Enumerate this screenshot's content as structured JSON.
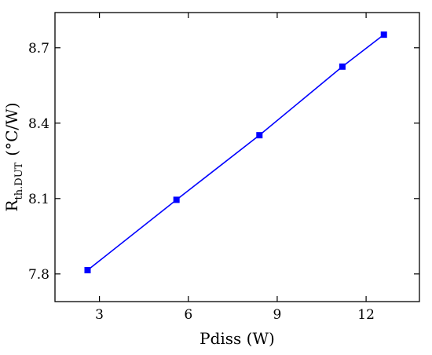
{
  "chart_data": {
    "type": "line",
    "title": "",
    "xlabel": "Pdiss (W)",
    "ylabel": {
      "main": "R",
      "subscript": "th.DUT",
      "unit": "(°C/W)"
    },
    "xlim": [
      1.5,
      13.8
    ],
    "ylim": [
      7.69,
      8.84
    ],
    "xticks": [
      3,
      6,
      9,
      12
    ],
    "yticks": [
      7.8,
      8.1,
      8.4,
      8.7
    ],
    "xtick_labels": [
      "3",
      "6",
      "9",
      "12"
    ],
    "ytick_labels": [
      "7.8",
      "8.1",
      "8.4",
      "8.7"
    ],
    "grid": false,
    "legend": "none",
    "series": [
      {
        "color": "#0000ff",
        "marker": "square",
        "x": [
          2.6,
          5.6,
          8.4,
          11.2,
          12.6
        ],
        "y": [
          7.815,
          8.095,
          8.352,
          8.625,
          8.752
        ]
      }
    ]
  }
}
